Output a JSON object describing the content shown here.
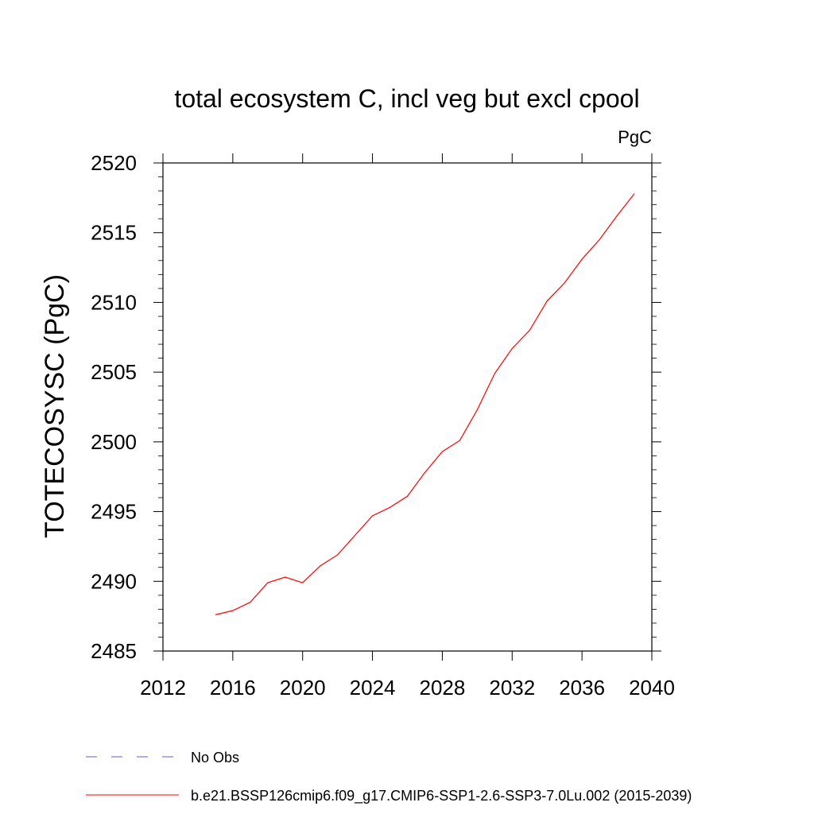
{
  "chart_data": {
    "type": "line",
    "title": "total ecosystem C, incl veg but excl cpool",
    "units": "PgC",
    "ylabel": "TOTECOSYSC  (PgC)",
    "xlabel": "",
    "xlim": [
      2012,
      2040
    ],
    "ylim": [
      2485,
      2520
    ],
    "x_ticks": [
      2012,
      2016,
      2020,
      2024,
      2028,
      2032,
      2036,
      2040
    ],
    "y_ticks": [
      2485,
      2490,
      2495,
      2500,
      2505,
      2510,
      2515,
      2520
    ],
    "grid": false,
    "legend_position": "bottom-left",
    "legend": [
      {
        "name": "No Obs",
        "color": "#6a5acd",
        "style": "dashed"
      },
      {
        "name": "b.e21.BSSP126cmip6.f09_g17.CMIP6-SSP1-2.6-SSP3-7.0Lu.002 (2015-2039)",
        "color": "#ff0000",
        "style": "solid"
      }
    ],
    "series": [
      {
        "name": "b.e21.BSSP126cmip6.f09_g17.CMIP6-SSP1-2.6-SSP3-7.0Lu.002 (2015-2039)",
        "color": "#ff0000",
        "x": [
          2015,
          2016,
          2017,
          2018,
          2019,
          2020,
          2021,
          2022,
          2023,
          2024,
          2025,
          2026,
          2027,
          2028,
          2029,
          2030,
          2031,
          2032,
          2033,
          2034,
          2035,
          2036,
          2037,
          2038,
          2039
        ],
        "values": [
          2487.6,
          2487.9,
          2488.5,
          2489.9,
          2490.3,
          2489.9,
          2491.1,
          2491.9,
          2493.3,
          2494.7,
          2495.3,
          2496.1,
          2497.8,
          2499.3,
          2500.1,
          2502.3,
          2504.9,
          2506.7,
          2508.0,
          2510.1,
          2511.4,
          2513.1,
          2514.5,
          2516.2,
          2517.8
        ]
      }
    ]
  }
}
